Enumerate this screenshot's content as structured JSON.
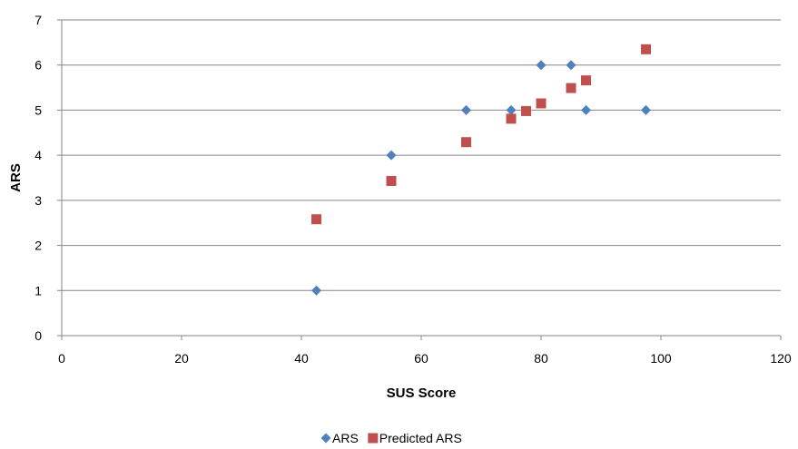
{
  "chart_data": {
    "type": "scatter",
    "title": "",
    "xlabel": "SUS Score",
    "ylabel": "ARS",
    "xlim": [
      0,
      120
    ],
    "ylim": [
      0,
      7
    ],
    "xticks": [
      0,
      20,
      40,
      60,
      80,
      100,
      120
    ],
    "yticks": [
      0,
      1,
      2,
      3,
      4,
      5,
      6,
      7
    ],
    "grid": "horizontal",
    "legend": "bottom",
    "series": [
      {
        "name": "ARS",
        "marker": "diamond",
        "color": "#4f81bd",
        "x": [
          42.5,
          55,
          67.5,
          75,
          80,
          85,
          87.5,
          97.5
        ],
        "y": [
          1,
          4,
          5,
          5,
          6,
          6,
          5,
          5
        ]
      },
      {
        "name": "Predicted ARS",
        "marker": "square",
        "color": "#c0504d",
        "x": [
          42.5,
          55,
          67.5,
          75,
          77.5,
          80,
          85,
          87.5,
          97.5
        ],
        "y": [
          2.58,
          3.43,
          4.29,
          4.81,
          4.98,
          5.15,
          5.49,
          5.66,
          6.35
        ]
      }
    ]
  }
}
